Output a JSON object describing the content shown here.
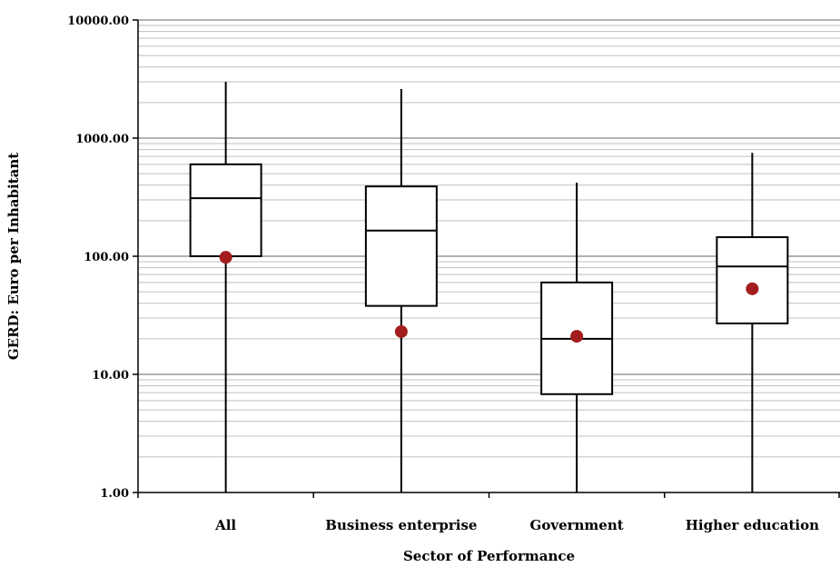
{
  "chart_data": {
    "type": "boxplot",
    "xlabel": "Sector of Performance",
    "ylabel": "GERD: Euro per Inhabitant",
    "yscale": "log",
    "ylim": [
      1,
      10000
    ],
    "yticks": [
      1,
      10,
      100,
      1000,
      10000
    ],
    "ytick_labels": [
      "1.00",
      "10.00",
      "100.00",
      "1000.00",
      "10000.00"
    ],
    "grid": "horizontal minor and major lines",
    "colors": {
      "box": "#000000",
      "mean_marker": "#a31d1d",
      "grid": "#bfbfbf"
    },
    "categories": [
      "All",
      "Business enterprise",
      "Government",
      "Higher education"
    ],
    "boxes": [
      {
        "category": "All",
        "min": 1,
        "q1": 100,
        "median": 310,
        "q3": 600,
        "max": 3000,
        "mean": 98
      },
      {
        "category": "Business enterprise",
        "min": 1,
        "q1": 38,
        "median": 165,
        "q3": 390,
        "max": 2600,
        "mean": 23
      },
      {
        "category": "Government",
        "min": 1,
        "q1": 6.8,
        "median": 20,
        "q3": 60,
        "max": 420,
        "mean": 21
      },
      {
        "category": "Higher education",
        "min": 1,
        "q1": 27,
        "median": 82,
        "q3": 145,
        "max": 750,
        "mean": 53
      }
    ]
  }
}
